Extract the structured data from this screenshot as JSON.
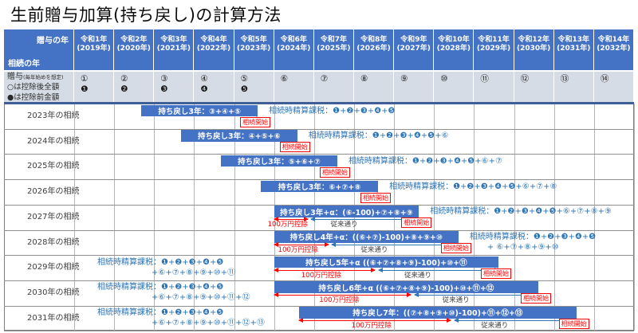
{
  "title": "生前贈与加算(持ち戻し)の計算方法",
  "colors": {
    "header_blue": "#4472C4",
    "bar_blue": "#4472C4",
    "gift_row_bg": "#D6DCE5",
    "note_blue": "#2E75B6",
    "accent_red": "#ff0000",
    "conventional_text": "#404040",
    "thick_divider": "#3f5f96"
  },
  "header": {
    "corner_top": "贈与の年",
    "corner_bottom": "相続の年",
    "years": [
      {
        "era": "令和1年",
        "west": "(2019年)"
      },
      {
        "era": "令和2年",
        "west": "(2020年)"
      },
      {
        "era": "令和3年",
        "west": "(2021年)"
      },
      {
        "era": "令和4年",
        "west": "(2022年)"
      },
      {
        "era": "令和5年",
        "west": "(2023年)"
      },
      {
        "era": "令和6年",
        "west": "(2024年)"
      },
      {
        "era": "令和7年",
        "west": "(2025年)"
      },
      {
        "era": "令和8年",
        "west": "(2026年)"
      },
      {
        "era": "令和9年",
        "west": "(2027年)"
      },
      {
        "era": "令和10年",
        "west": "(2028年)"
      },
      {
        "era": "令和11年",
        "west": "(2029年)"
      },
      {
        "era": "令和12年",
        "west": "(2030年)"
      },
      {
        "era": "令和13年",
        "west": "(2031年)"
      },
      {
        "era": "令和14年",
        "west": "(2032年)"
      }
    ]
  },
  "gift_row": {
    "label_main": "贈与",
    "label_note": "(毎年始めを想定)",
    "legend_after": "○は控除後全額",
    "legend_before": "●は控除前金額",
    "cells": [
      {
        "open": "①",
        "filled": "❶"
      },
      {
        "open": "②",
        "filled": "❷"
      },
      {
        "open": "③",
        "filled": "❸"
      },
      {
        "open": "④",
        "filled": "❹"
      },
      {
        "open": "⑤",
        "filled": "❺"
      },
      {
        "open": "⑥"
      },
      {
        "open": "⑦"
      },
      {
        "open": "⑧"
      },
      {
        "open": "⑨"
      },
      {
        "open": "⑩"
      },
      {
        "open": "⑪"
      },
      {
        "open": "⑫"
      },
      {
        "open": "⑬"
      },
      {
        "open": "⑭"
      }
    ]
  },
  "annotation_labels": {
    "start": "相続開始",
    "deduction": "100万円控除",
    "conventional": "従来通り"
  },
  "rows": [
    {
      "label": "2023年の相続",
      "bar": {
        "text": "持ち戻し3年：③+④+⑤",
        "from": 2.68,
        "to": 5.59
      },
      "note": {
        "side": "right",
        "lines": [
          "相続時精算課税：❶+❷+❸+❹+❺"
        ]
      }
    },
    {
      "label": "2024年の相続",
      "bar": {
        "text": "持ち戻し3年：④+⑤+⑥",
        "from": 3.67,
        "to": 6.58
      },
      "note": {
        "side": "right",
        "lines": [
          "相続時精算課税：❶+❷+❸+❹+❺+⑥"
        ]
      }
    },
    {
      "label": "2025年の相続",
      "bar": {
        "text": "持ち戻し3年：⑤+⑥+⑦",
        "from": 4.67,
        "to": 7.58
      },
      "note": {
        "side": "right",
        "lines": [
          "相続時精算課税：❶+❷+❸+❹+❺+⑥+⑦"
        ]
      }
    },
    {
      "label": "2026年の相続",
      "bar": {
        "text": "持ち戻し3年：⑥+⑦+⑧",
        "from": 5.67,
        "to": 8.6
      },
      "note": {
        "side": "right",
        "lines": [
          "相続時精算課税：❶+❷+❸+❹+❺+⑥+⑦+⑧"
        ]
      }
    },
    {
      "label": "2027年の相続",
      "bar": {
        "text": "持ち戻し3年+α：(⑥-100)+⑦+⑧+⑨",
        "from": 6.0,
        "to": 9.62
      },
      "deduction_span": [
        6.0,
        6.84
      ],
      "conventional_span": [
        6.92,
        9.62
      ],
      "note": {
        "side": "right",
        "lines": [
          "相続時精算課税：❶+❷+❸+❹+❺+⑥+⑦+⑧+⑨"
        ]
      }
    },
    {
      "label": "2028年の相続",
      "bar": {
        "text": "持ち戻し4年+α：((⑥+⑦)-100)+⑧+⑨+⑩",
        "from": 6.0,
        "to": 10.61
      },
      "deduction_span": [
        6.0,
        7.36
      ],
      "conventional_span": [
        7.44,
        10.61
      ],
      "note": {
        "side": "right",
        "lines": [
          "相続時精算課税：❶+❷+❸+❹+❺",
          "+ ⑥+⑦+⑧+⑨+⑩"
        ]
      }
    },
    {
      "label": "2029年の相続",
      "bar": {
        "text": "持ち戻し5年+α ((⑥+⑦+⑧+⑨)-100)+⑩+⑪",
        "from": 6.0,
        "to": 11.61
      },
      "deduction_span": [
        6.0,
        8.52
      ],
      "conventional_span": [
        8.62,
        11.61
      ],
      "note": {
        "side": "left",
        "lines": [
          "相続時精算課税：❶+❷+❸+❹+❺",
          "+⑥+⑦+⑧+⑨+⑩+⑪"
        ]
      }
    },
    {
      "label": "2030年の相続",
      "bar": {
        "text": "持ち戻し6年+α ((⑥+⑦+⑧+⑨)-100)+⑩+⑪+⑫",
        "from": 6.0,
        "to": 12.61
      },
      "deduction_span": [
        6.0,
        9.42
      ],
      "conventional_span": [
        9.52,
        12.61
      ],
      "note": {
        "side": "left",
        "lines": [
          "相続時精算課税：❶+❷+❸+❹+❺",
          "+⑥+⑦+⑧+⑨+⑩+⑪+⑫"
        ]
      }
    },
    {
      "label": "2031年の相続",
      "bar": {
        "text": "持ち戻し7年：((⑦+⑧+⑨+⑩)-100)+⑪+⑫+⑬",
        "from": 6.62,
        "to": 13.56
      },
      "deduction_span": [
        6.62,
        10.41
      ],
      "conventional_span": [
        10.51,
        13.56
      ],
      "note": {
        "side": "left",
        "lines": [
          "相続時精算課税：❶+❷+❸+❹+❺",
          "+⑥+⑦+⑧+⑨+⑩+⑪+⑫+⑬"
        ]
      }
    }
  ]
}
